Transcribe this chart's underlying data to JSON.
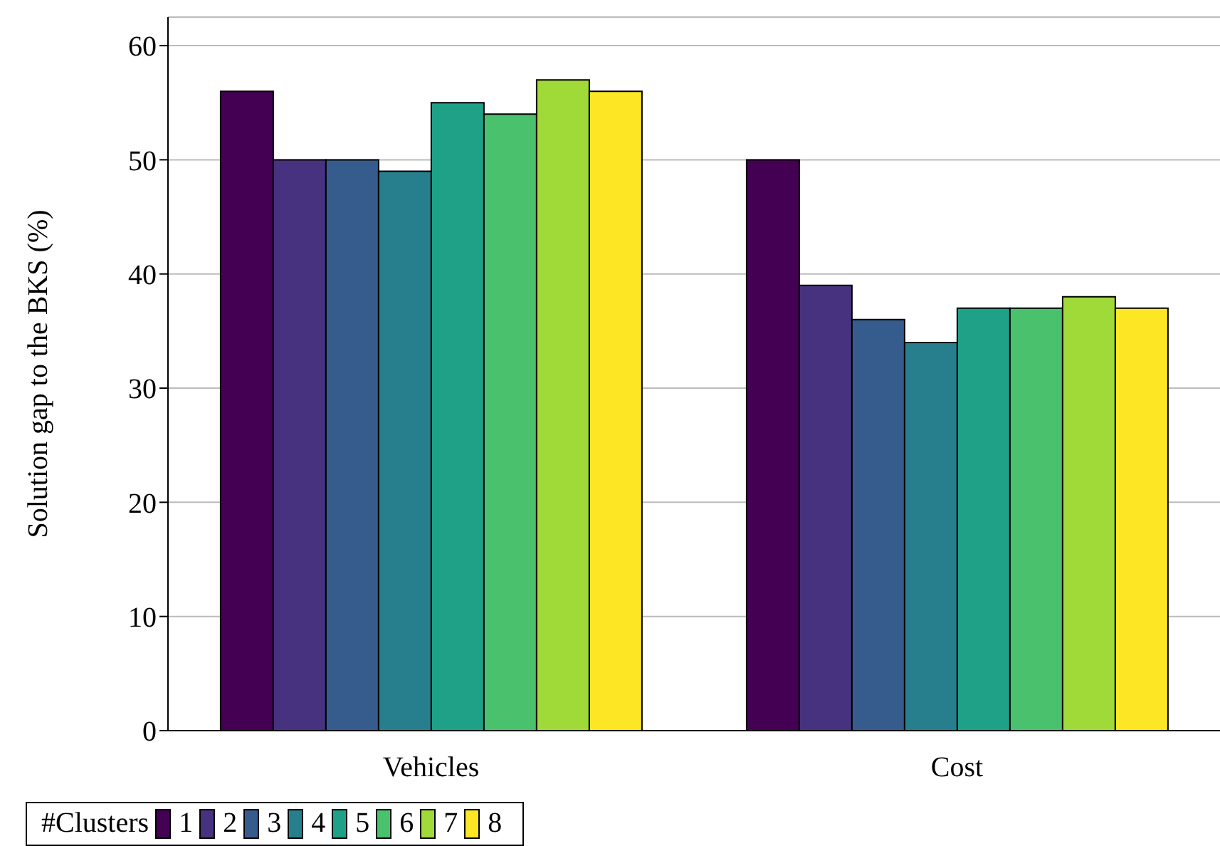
{
  "chart_data": {
    "type": "bar",
    "ylabel": "Solution gap to the BKS (%)",
    "legend_title": "#Clusters",
    "categories": [
      "Vehicles",
      "Cost"
    ],
    "series": [
      {
        "name": "1",
        "color": "#440154",
        "values": [
          56,
          50
        ]
      },
      {
        "name": "2",
        "color": "#46327e",
        "values": [
          50,
          39
        ]
      },
      {
        "name": "3",
        "color": "#365c8d",
        "values": [
          50,
          36
        ]
      },
      {
        "name": "4",
        "color": "#277f8e",
        "values": [
          49,
          34
        ]
      },
      {
        "name": "5",
        "color": "#1fa187",
        "values": [
          55,
          37
        ]
      },
      {
        "name": "6",
        "color": "#4ac16d",
        "values": [
          54,
          37
        ]
      },
      {
        "name": "7",
        "color": "#a0da39",
        "values": [
          57,
          38
        ]
      },
      {
        "name": "8",
        "color": "#fde725",
        "values": [
          56,
          37
        ]
      }
    ],
    "ylim": [
      0,
      62.5
    ],
    "yticks": [
      0,
      10,
      20,
      30,
      40,
      50,
      60
    ],
    "grid": "y",
    "legend": "bottom"
  }
}
